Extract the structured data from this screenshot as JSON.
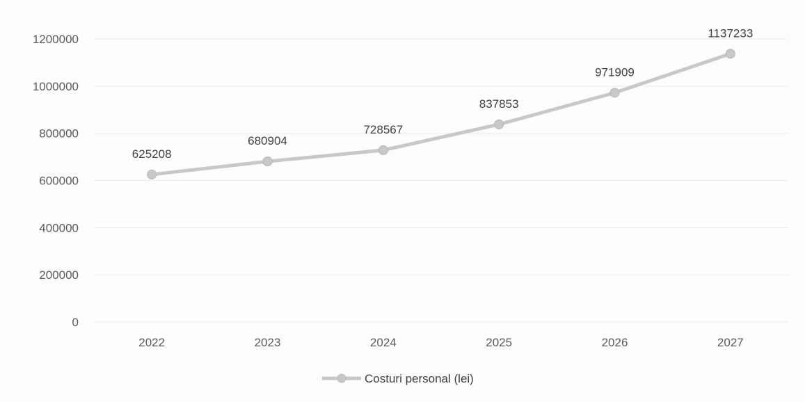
{
  "chart_data": {
    "type": "line",
    "title": "",
    "xlabel": "",
    "ylabel": "",
    "categories": [
      "2022",
      "2023",
      "2024",
      "2025",
      "2026",
      "2027"
    ],
    "series": [
      {
        "name": "Costuri personal (lei)",
        "values": [
          625208,
          680904,
          728567,
          837853,
          971909,
          1137233
        ],
        "data_labels": [
          "625208",
          "680904",
          "728567",
          "837853",
          "971909",
          "1137233"
        ],
        "color": "#c8c8c8"
      }
    ],
    "ylim": [
      0,
      1200000
    ],
    "yticks": [
      0,
      200000,
      400000,
      600000,
      800000,
      1000000,
      1200000
    ],
    "ytick_labels": [
      "0",
      "200000",
      "400000",
      "600000",
      "800000",
      "1000000",
      "1200000"
    ],
    "grid": true,
    "legend": "bottom-center",
    "gridline_color": "#ececec"
  }
}
